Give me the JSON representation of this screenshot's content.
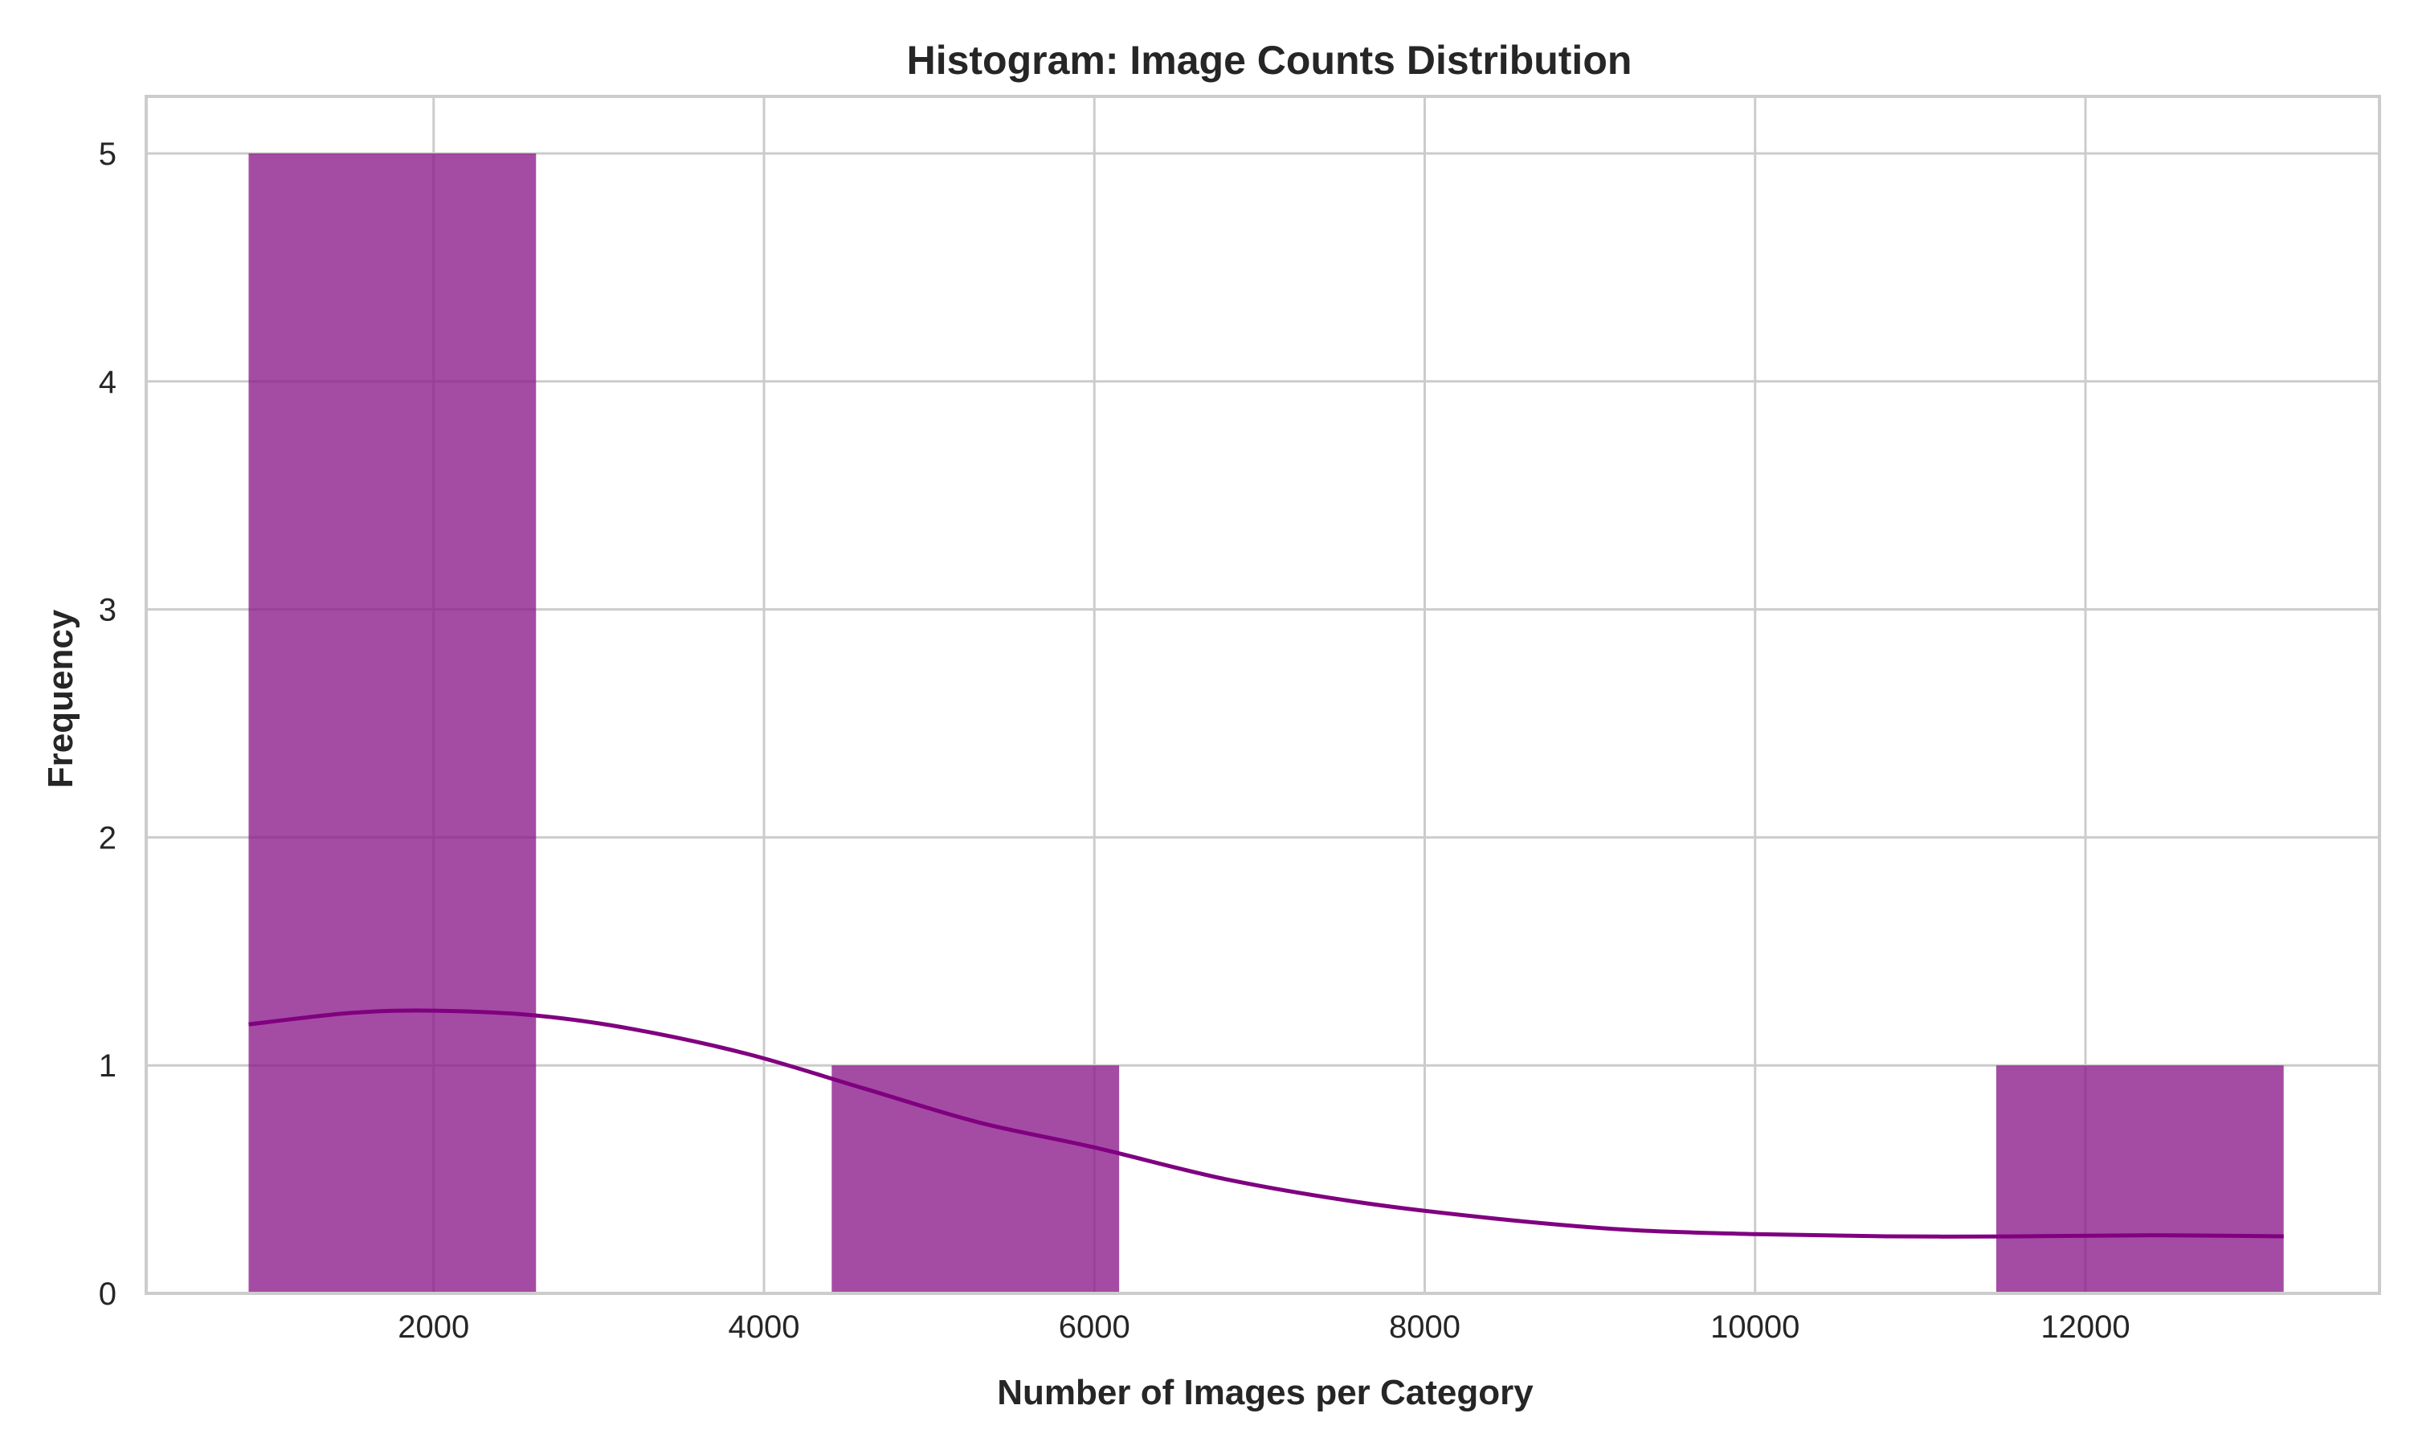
{
  "chart_data": {
    "type": "bar",
    "title": "Histogram: Image Counts Distribution",
    "xlabel": "Number of Images per Category",
    "ylabel": "Frequency",
    "xlim": [
      260,
      13780
    ],
    "ylim": [
      0,
      5.25
    ],
    "xticks": [
      2000,
      4000,
      6000,
      8000,
      10000,
      12000
    ],
    "yticks": [
      0,
      1,
      2,
      3,
      4,
      5
    ],
    "grid": true,
    "bar_color": "#800080",
    "bins": [
      {
        "start": 880,
        "end": 2620,
        "count": 5
      },
      {
        "start": 4410,
        "end": 6150,
        "count": 1
      },
      {
        "start": 11460,
        "end": 13200,
        "count": 1
      }
    ],
    "kde": {
      "color": "#800080",
      "x": [
        880,
        1500,
        2000,
        2600,
        3200,
        3900,
        4600,
        5300,
        6000,
        6800,
        7600,
        8400,
        9200,
        10000,
        10800,
        11600,
        12400,
        13200
      ],
      "y": [
        1.18,
        1.23,
        1.24,
        1.22,
        1.16,
        1.05,
        0.9,
        0.75,
        0.64,
        0.5,
        0.4,
        0.33,
        0.28,
        0.26,
        0.25,
        0.25,
        0.255,
        0.25
      ]
    }
  }
}
